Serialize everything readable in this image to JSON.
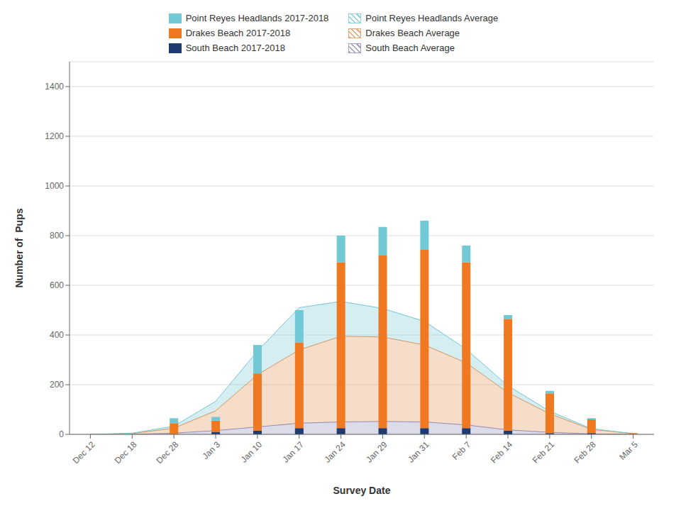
{
  "chart_data": {
    "type": "bar",
    "stacked": true,
    "xlabel": "Survey Date",
    "ylabel": "Number of  Pups",
    "categories": [
      "Dec 12",
      "Dec 18",
      "Dec 28",
      "Jan 3",
      "Jan 10",
      "Jan 17",
      "Jan 24",
      "Jan 29",
      "Jan 31",
      "Feb 7",
      "Feb 14",
      "Feb 21",
      "Feb 28",
      "Mar 5"
    ],
    "series": [
      {
        "name": "Point Reyes Headlands 2017-2018",
        "type": "bar",
        "color": "#72c8d5",
        "values": [
          0,
          0,
          20,
          15,
          115,
          130,
          107,
          115,
          117,
          67,
          15,
          10,
          5,
          0
        ]
      },
      {
        "name": "Point Reyes Headlands Average",
        "type": "area",
        "color": "#72c8d5",
        "values": [
          0,
          2,
          8,
          38,
          95,
          170,
          140,
          115,
          95,
          55,
          28,
          10,
          3,
          0
        ]
      },
      {
        "name": "Drakes Beach 2017-2018",
        "type": "bar",
        "color": "#f07820",
        "values": [
          0,
          0,
          45,
          45,
          230,
          345,
          668,
          695,
          718,
          668,
          450,
          160,
          55,
          5
        ]
      },
      {
        "name": "Drakes Beach Average",
        "type": "area",
        "color": "#e09050",
        "values": [
          0,
          3,
          20,
          80,
          210,
          295,
          345,
          340,
          310,
          250,
          150,
          75,
          18,
          3
        ]
      },
      {
        "name": "South Beach 2017-2018",
        "type": "bar",
        "color": "#1e3a6e",
        "values": [
          0,
          0,
          0,
          10,
          15,
          25,
          25,
          25,
          25,
          25,
          15,
          5,
          5,
          0
        ]
      },
      {
        "name": "South Beach Average",
        "type": "area",
        "color": "#8888bb",
        "values": [
          0,
          0,
          5,
          15,
          30,
          45,
          50,
          52,
          50,
          38,
          18,
          8,
          2,
          0
        ]
      }
    ],
    "ylim": [
      0,
      1500
    ],
    "yticks": [
      0,
      200,
      400,
      600,
      800,
      1000,
      1200,
      1400
    ],
    "grid": true,
    "legend": "top"
  }
}
